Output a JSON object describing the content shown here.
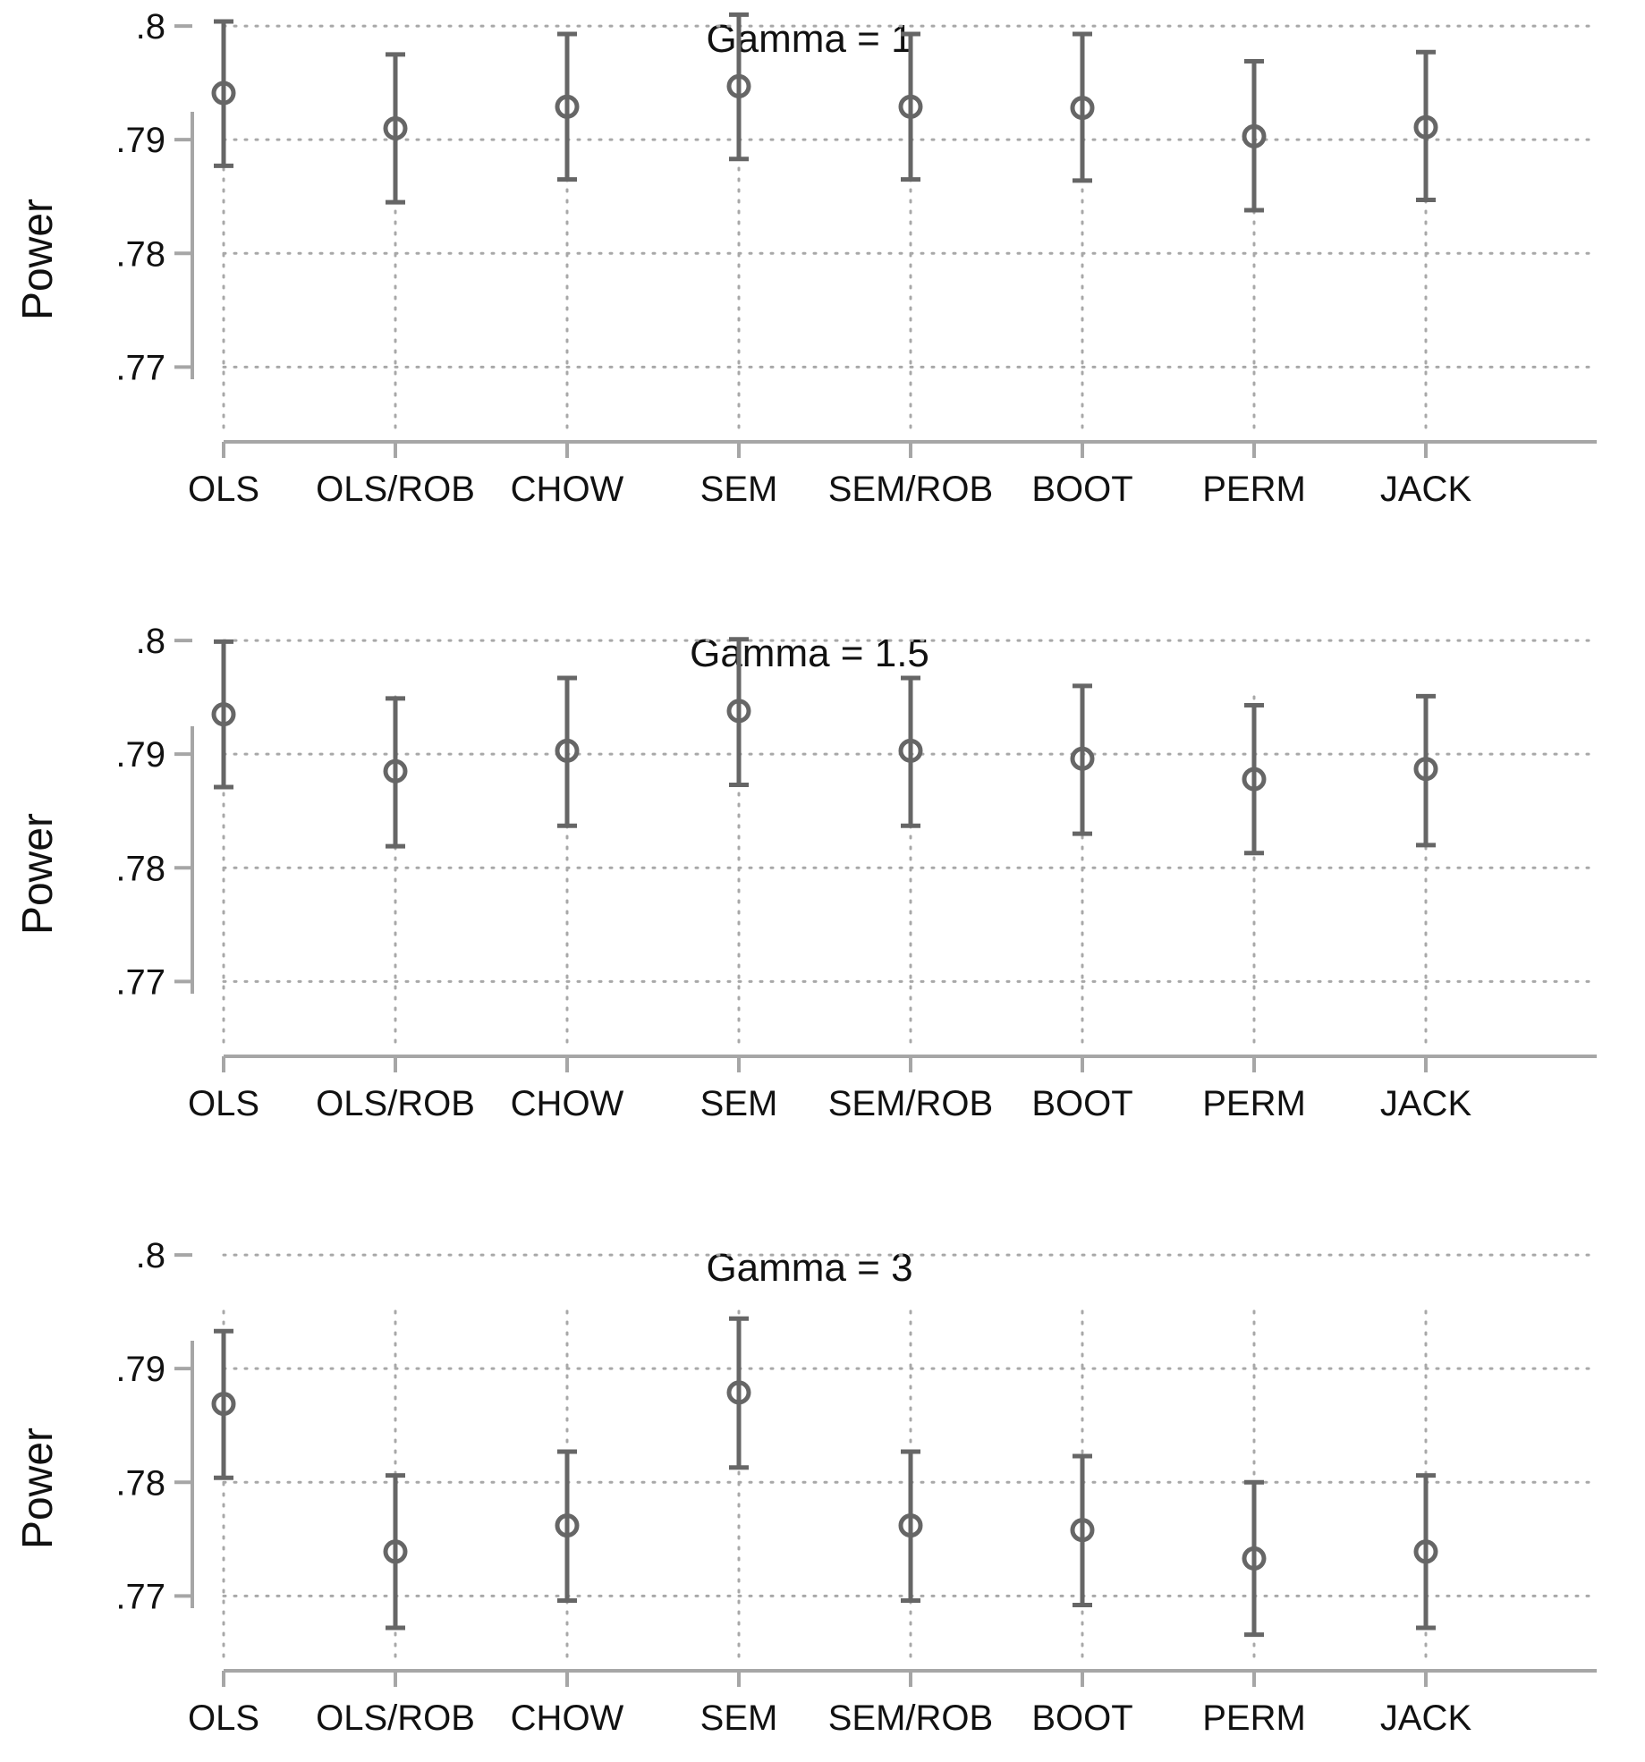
{
  "chart_data": [
    {
      "type": "scatter",
      "title": "Gamma = 1",
      "xlabel": "",
      "ylabel": "Power",
      "ylim": [
        0.7635,
        0.8015
      ],
      "yticks": [
        ".77",
        ".78",
        ".79",
        ".8"
      ],
      "ytick_values": [
        0.77,
        0.78,
        0.79,
        0.8
      ],
      "grid": true,
      "categories": [
        "OLS",
        "OLS/ROB",
        "CHOW",
        "SEM",
        "SEM/ROB",
        "BOOT",
        "PERM",
        "JACK"
      ],
      "values": [
        0.7941,
        0.791,
        0.7929,
        0.7947,
        0.7929,
        0.7928,
        0.7903,
        0.7911
      ],
      "lower": [
        0.7877,
        0.7845,
        0.7865,
        0.7883,
        0.7865,
        0.7864,
        0.7838,
        0.7847
      ],
      "upper": [
        0.8004,
        0.7975,
        0.7993,
        0.801,
        0.7993,
        0.7993,
        0.7969,
        0.7977
      ]
    },
    {
      "type": "scatter",
      "title": "Gamma = 1.5",
      "xlabel": "",
      "ylabel": "Power",
      "ylim": [
        0.7635,
        0.8015
      ],
      "yticks": [
        ".77",
        ".78",
        ".79",
        ".8"
      ],
      "ytick_values": [
        0.77,
        0.78,
        0.79,
        0.8
      ],
      "grid": true,
      "categories": [
        "OLS",
        "OLS/ROB",
        "CHOW",
        "SEM",
        "SEM/ROB",
        "BOOT",
        "PERM",
        "JACK"
      ],
      "values": [
        0.7935,
        0.7885,
        0.7903,
        0.7938,
        0.7903,
        0.7896,
        0.7878,
        0.7887
      ],
      "lower": [
        0.7871,
        0.7819,
        0.7837,
        0.7873,
        0.7837,
        0.783,
        0.7813,
        0.782
      ],
      "upper": [
        0.7999,
        0.7949,
        0.7967,
        0.8001,
        0.7967,
        0.796,
        0.7943,
        0.7951
      ]
    },
    {
      "type": "scatter",
      "title": "Gamma = 3",
      "xlabel": "",
      "ylabel": "Power",
      "ylim": [
        0.7635,
        0.8015
      ],
      "yticks": [
        ".77",
        ".78",
        ".79",
        ".8"
      ],
      "ytick_values": [
        0.77,
        0.78,
        0.79,
        0.8
      ],
      "grid": true,
      "categories": [
        "OLS",
        "OLS/ROB",
        "CHOW",
        "SEM",
        "SEM/ROB",
        "BOOT",
        "PERM",
        "JACK"
      ],
      "values": [
        0.7869,
        0.7739,
        0.7762,
        0.7879,
        0.7762,
        0.7758,
        0.7733,
        0.7739
      ],
      "lower": [
        0.7804,
        0.7672,
        0.7696,
        0.7813,
        0.7696,
        0.7692,
        0.7666,
        0.7672
      ],
      "upper": [
        0.7933,
        0.7806,
        0.7827,
        0.7944,
        0.7827,
        0.7823,
        0.78,
        0.7806
      ]
    }
  ]
}
